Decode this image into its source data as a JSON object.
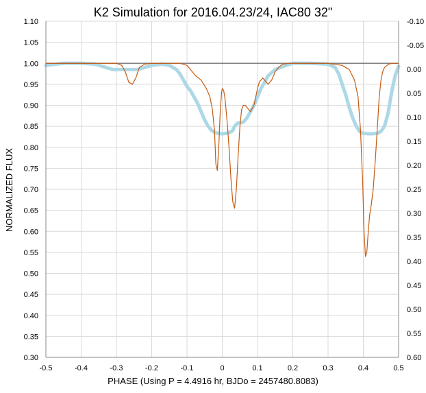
{
  "colors": {
    "grid": "#d9d9d9",
    "axis": "#888888",
    "baseline": "#7f7f7f",
    "model": "#c55a11",
    "data": "#add8e6"
  },
  "chart_data": {
    "type": "line",
    "title": "K2 Simulation for 2016.04.23/24, IAC80 32\"",
    "xlabel": "PHASE (Using P = 4.4916 hr, BJDo = 2457480.8083)",
    "ylabel": "NORMALIZED FLUX",
    "xlim": [
      -0.5,
      0.5
    ],
    "ylim": [
      0.3,
      1.1
    ],
    "y2lim": [
      -0.1,
      0.6
    ],
    "y2_reversed": true,
    "grid": true,
    "x_ticks": [
      "-0.5",
      "-0.4",
      "-0.3",
      "-0.2",
      "-0.1",
      "0",
      "0.1",
      "0.2",
      "0.3",
      "0.4",
      "0.5"
    ],
    "y_ticks": [
      "0.30",
      "0.35",
      "0.40",
      "0.45",
      "0.50",
      "0.55",
      "0.60",
      "0.65",
      "0.70",
      "0.75",
      "0.80",
      "0.85",
      "0.90",
      "0.95",
      "1.00",
      "1.05",
      "1.10"
    ],
    "y2_ticks": [
      "0.60",
      "0.55",
      "0.50",
      "0.45",
      "0.40",
      "0.35",
      "0.30",
      "0.25",
      "0.20",
      "0.15",
      "0.10",
      "0.05",
      "0.00",
      "-0.05",
      "-0.10"
    ],
    "series": [
      {
        "role": "baseline",
        "x": [
          -0.5,
          0.5
        ],
        "y": [
          1.0,
          1.0
        ]
      },
      {
        "role": "model",
        "x": [
          -0.5,
          -0.3,
          -0.285,
          -0.275,
          -0.265,
          -0.255,
          -0.245,
          -0.235,
          -0.22,
          -0.2,
          -0.12,
          -0.1,
          -0.085,
          -0.075,
          -0.06,
          -0.045,
          -0.035,
          -0.028,
          -0.022,
          -0.018,
          -0.014,
          -0.01,
          -0.006,
          -0.002,
          0.0,
          0.004,
          0.008,
          0.014,
          0.02,
          0.025,
          0.03,
          0.035,
          0.04,
          0.045,
          0.05,
          0.055,
          0.06,
          0.065,
          0.07,
          0.075,
          0.08,
          0.09,
          0.1,
          0.105,
          0.11,
          0.115,
          0.12,
          0.125,
          0.13,
          0.14,
          0.15,
          0.16,
          0.17,
          0.19,
          0.2,
          0.3,
          0.34,
          0.36,
          0.375,
          0.385,
          0.392,
          0.398,
          0.402,
          0.406,
          0.41,
          0.414,
          0.418,
          0.422,
          0.428,
          0.434,
          0.44,
          0.445,
          0.45,
          0.455,
          0.46,
          0.47,
          0.48,
          0.49,
          0.5
        ],
        "y": [
          1.0,
          1.0,
          0.995,
          0.98,
          0.955,
          0.95,
          0.965,
          0.99,
          0.998,
          1.0,
          1.0,
          0.995,
          0.98,
          0.97,
          0.96,
          0.94,
          0.92,
          0.89,
          0.84,
          0.76,
          0.745,
          0.8,
          0.88,
          0.93,
          0.94,
          0.935,
          0.915,
          0.86,
          0.79,
          0.72,
          0.67,
          0.655,
          0.7,
          0.78,
          0.85,
          0.89,
          0.9,
          0.9,
          0.895,
          0.89,
          0.885,
          0.9,
          0.94,
          0.955,
          0.96,
          0.965,
          0.96,
          0.955,
          0.95,
          0.96,
          0.98,
          0.99,
          0.998,
          1.0,
          1.0,
          1.0,
          0.995,
          0.985,
          0.96,
          0.92,
          0.84,
          0.72,
          0.6,
          0.54,
          0.55,
          0.6,
          0.64,
          0.66,
          0.7,
          0.77,
          0.85,
          0.92,
          0.96,
          0.98,
          0.99,
          0.997,
          1.0,
          1.0,
          1.0
        ]
      },
      {
        "role": "data",
        "x": [
          -0.5,
          -0.45,
          -0.4,
          -0.36,
          -0.33,
          -0.31,
          -0.29,
          -0.26,
          -0.24,
          -0.22,
          -0.2,
          -0.17,
          -0.15,
          -0.13,
          -0.12,
          -0.11,
          -0.1,
          -0.09,
          -0.08,
          -0.07,
          -0.06,
          -0.05,
          -0.04,
          -0.03,
          -0.02,
          -0.01,
          0.0,
          0.01,
          0.02,
          0.03,
          0.035,
          0.04,
          0.045,
          0.05,
          0.06,
          0.07,
          0.08,
          0.09,
          0.1,
          0.11,
          0.12,
          0.13,
          0.15,
          0.18,
          0.2,
          0.25,
          0.3,
          0.32,
          0.33,
          0.34,
          0.35,
          0.36,
          0.37,
          0.38,
          0.39,
          0.4,
          0.42,
          0.44,
          0.45,
          0.46,
          0.47,
          0.48,
          0.49,
          0.5
        ],
        "y": [
          0.995,
          1.0,
          1.0,
          0.998,
          0.99,
          0.985,
          0.985,
          0.985,
          0.985,
          0.99,
          0.995,
          0.998,
          0.995,
          0.985,
          0.975,
          0.96,
          0.945,
          0.935,
          0.92,
          0.905,
          0.885,
          0.865,
          0.85,
          0.84,
          0.835,
          0.833,
          0.832,
          0.833,
          0.835,
          0.84,
          0.85,
          0.855,
          0.858,
          0.858,
          0.86,
          0.87,
          0.885,
          0.9,
          0.92,
          0.94,
          0.955,
          0.97,
          0.985,
          0.995,
          1.0,
          1.0,
          0.998,
          0.99,
          0.975,
          0.95,
          0.925,
          0.895,
          0.87,
          0.85,
          0.837,
          0.833,
          0.832,
          0.833,
          0.838,
          0.85,
          0.88,
          0.93,
          0.97,
          0.993
        ]
      }
    ]
  }
}
